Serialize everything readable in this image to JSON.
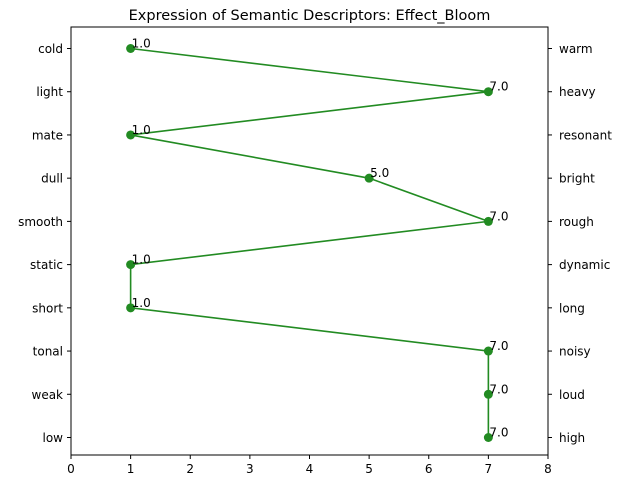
{
  "chart_data": {
    "type": "line",
    "title": "Expression of Semantic Descriptors: Effect_Bloom",
    "xlabel": "",
    "ylabel": "",
    "xlim": [
      0,
      8
    ],
    "xticks": [
      "0",
      "1",
      "2",
      "3",
      "4",
      "5",
      "6",
      "7",
      "8"
    ],
    "left_labels": [
      "cold",
      "light",
      "mate",
      "dull",
      "smooth",
      "static",
      "short",
      "tonal",
      "weak",
      "low"
    ],
    "right_labels": [
      "warm",
      "heavy",
      "resonant",
      "bright",
      "rough",
      "dynamic",
      "long",
      "noisy",
      "loud",
      "high"
    ],
    "values": [
      1.0,
      7.0,
      1.0,
      5.0,
      7.0,
      1.0,
      1.0,
      7.0,
      7.0,
      7.0
    ],
    "value_labels": [
      "1.0",
      "7.0",
      "1.0",
      "5.0",
      "7.0",
      "1.0",
      "1.0",
      "7.0",
      "7.0",
      "7.0"
    ],
    "grid": false,
    "color": "#228b22"
  }
}
